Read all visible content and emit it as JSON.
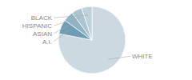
{
  "chart_data": {
    "type": "pie",
    "categories": [
      "WHITE",
      "A.I.",
      "ASIAN",
      "HISPANIC",
      "BLACK"
    ],
    "values": [
      78,
      7,
      5,
      5,
      5
    ],
    "colors": [
      "#cdd9e0",
      "#6e9db5",
      "#90b4c4",
      "#aac5cf",
      "#bdd2da"
    ]
  }
}
